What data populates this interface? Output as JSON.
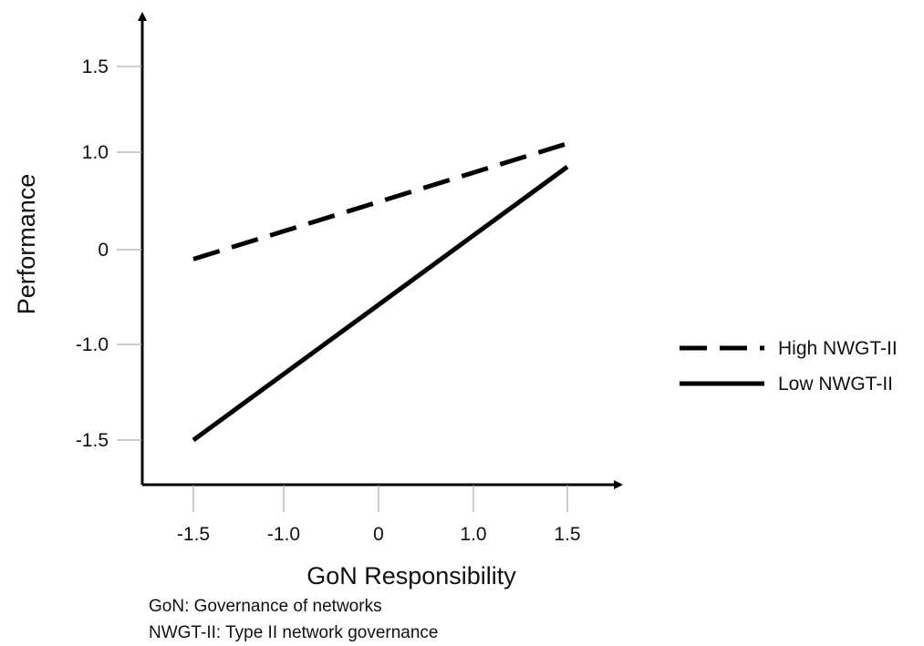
{
  "chart_data": {
    "type": "line",
    "title": "",
    "xlabel": "GoN Responsibility",
    "ylabel": "Performance",
    "x_ticks": [
      {
        "value": -1.5,
        "label": "-1.5"
      },
      {
        "value": -1.0,
        "label": "-1.0"
      },
      {
        "value": 0,
        "label": "0"
      },
      {
        "value": 1.0,
        "label": "1.0"
      },
      {
        "value": 1.5,
        "label": "1.5"
      }
    ],
    "y_ticks": [
      {
        "value": -1.5,
        "label": "-1.5"
      },
      {
        "value": -1.0,
        "label": "-1.0"
      },
      {
        "value": 0,
        "label": "0"
      },
      {
        "value": 1.0,
        "label": "1.0"
      },
      {
        "value": 1.5,
        "label": "1.5"
      }
    ],
    "series": [
      {
        "name": "High NWGT-II",
        "style": "dashed",
        "color": "#000000",
        "x": [
          -1.5,
          1.5
        ],
        "y": [
          -0.1,
          1.05
        ]
      },
      {
        "name": "Low NWGT-II",
        "style": "solid",
        "color": "#000000",
        "x": [
          -1.5,
          1.5
        ],
        "y": [
          -1.5,
          0.85
        ]
      }
    ],
    "grid": false,
    "legend_position": "right"
  },
  "notes": [
    "GoN: Governance of networks",
    "NWGT-II: Type II network governance"
  ]
}
